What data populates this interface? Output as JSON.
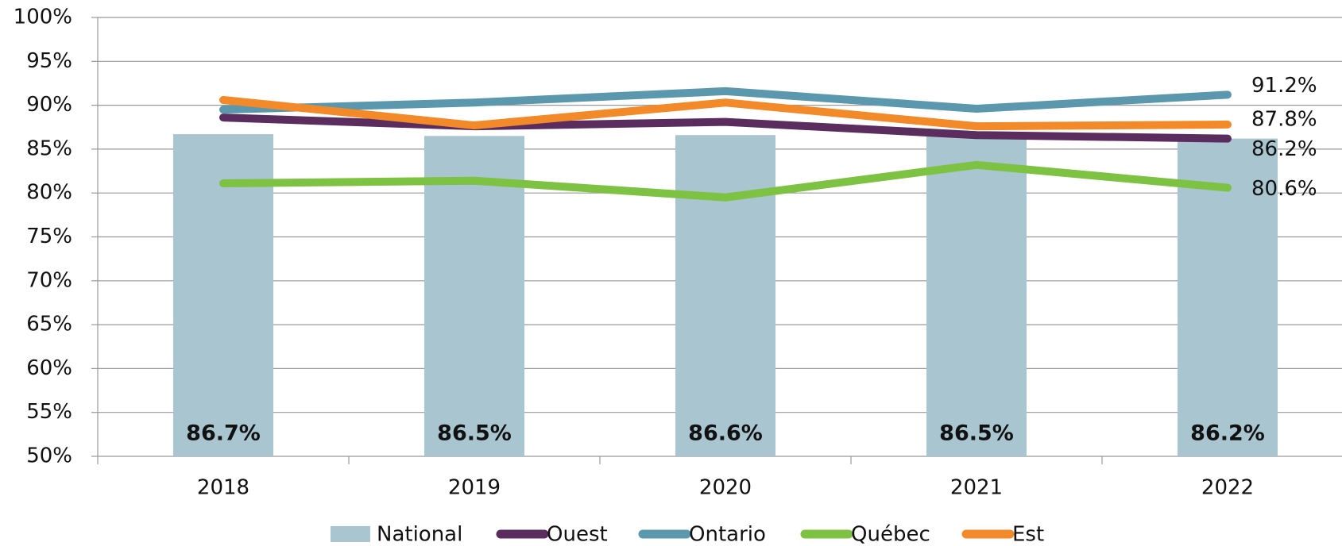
{
  "chart_data": {
    "type": "bar_line",
    "categories": [
      "2018",
      "2019",
      "2020",
      "2021",
      "2022"
    ],
    "ylim": [
      50,
      100
    ],
    "yticks": [
      {
        "value": 50,
        "label": "50%"
      },
      {
        "value": 55,
        "label": "55%"
      },
      {
        "value": 60,
        "label": "60%"
      },
      {
        "value": 65,
        "label": "65%"
      },
      {
        "value": 70,
        "label": "70%"
      },
      {
        "value": 75,
        "label": "75%"
      },
      {
        "value": 80,
        "label": "80%"
      },
      {
        "value": 85,
        "label": "85%"
      },
      {
        "value": 90,
        "label": "90%"
      },
      {
        "value": 95,
        "label": "95%"
      },
      {
        "value": 100,
        "label": "100%"
      }
    ],
    "grid": true,
    "series": [
      {
        "name": "National",
        "type": "bar",
        "color": "#a8c5d0",
        "values": [
          86.7,
          86.5,
          86.6,
          86.5,
          86.2
        ],
        "value_labels": [
          "86.7%",
          "86.5%",
          "86.6%",
          "86.5%",
          "86.2%"
        ]
      },
      {
        "name": "Ouest",
        "type": "line",
        "color": "#5b2d5e",
        "values": [
          88.6,
          87.6,
          88.1,
          86.6,
          86.2
        ],
        "value_labels": [
          null,
          null,
          null,
          null,
          "86.2%"
        ]
      },
      {
        "name": "Ontario",
        "type": "line",
        "color": "#5b98ad",
        "values": [
          89.5,
          90.3,
          91.6,
          89.6,
          91.2
        ],
        "value_labels": [
          null,
          null,
          null,
          null,
          "91.2%"
        ]
      },
      {
        "name": "Québec",
        "type": "line",
        "color": "#7dc242",
        "values": [
          81.1,
          81.4,
          79.5,
          83.2,
          80.6
        ],
        "value_labels": [
          null,
          null,
          null,
          null,
          "80.6%"
        ]
      },
      {
        "name": "Est",
        "type": "line",
        "color": "#f28a2a",
        "values": [
          90.6,
          87.7,
          90.3,
          87.6,
          87.8
        ],
        "value_labels": [
          null,
          null,
          null,
          null,
          "87.8%"
        ]
      }
    ]
  }
}
